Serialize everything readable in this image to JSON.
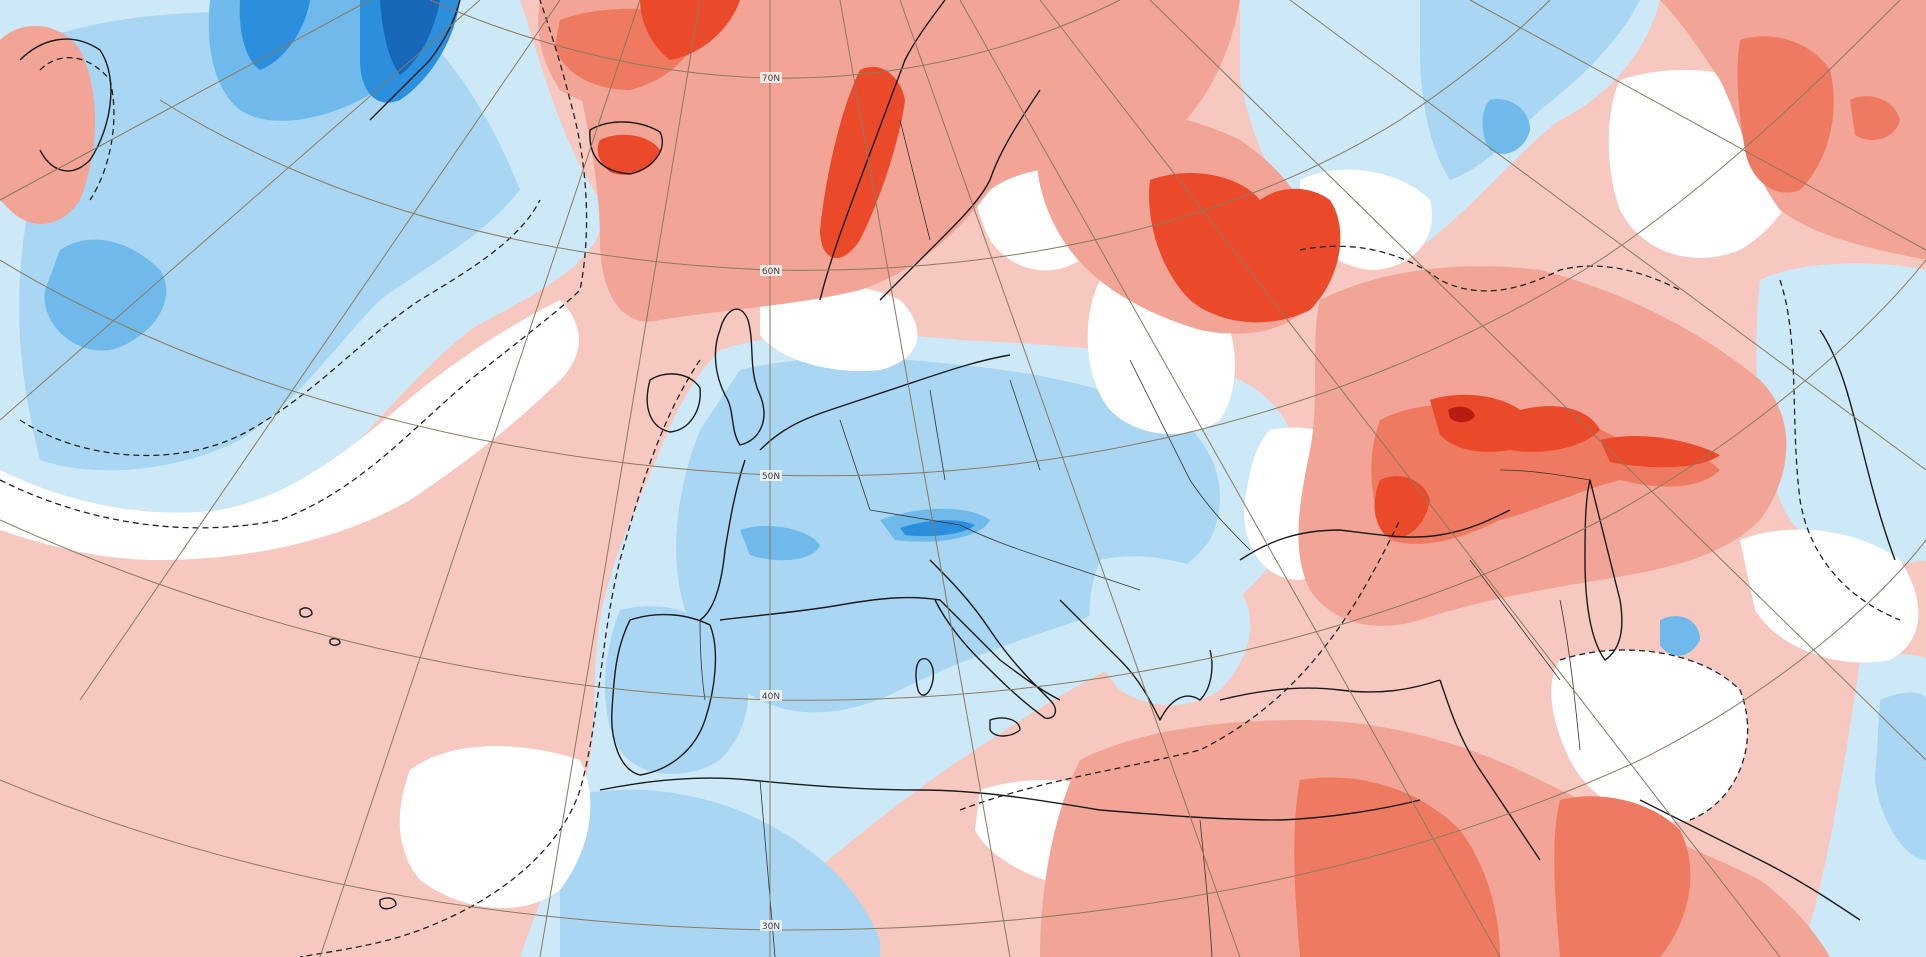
{
  "map": {
    "type": "temperature anomaly map",
    "colors": {
      "background_warm_light": "#f7c8c0",
      "warm_1": "#f2a496",
      "warm_2": "#ef7a62",
      "warm_3": "#ea4a2a",
      "warm_4": "#b71c10",
      "neutral": "#ffffff",
      "cold_1": "#cde9f8",
      "cold_2": "#a8d6f3",
      "cold_3": "#6fbaeb",
      "cold_4": "#2b8fde",
      "cold_5": "#1767b8",
      "coastline": "#1a1a1a",
      "graticule": "#8a7a5e"
    },
    "latitude_labels": [
      "70N",
      "60N",
      "50N",
      "40N",
      "30N"
    ]
  }
}
